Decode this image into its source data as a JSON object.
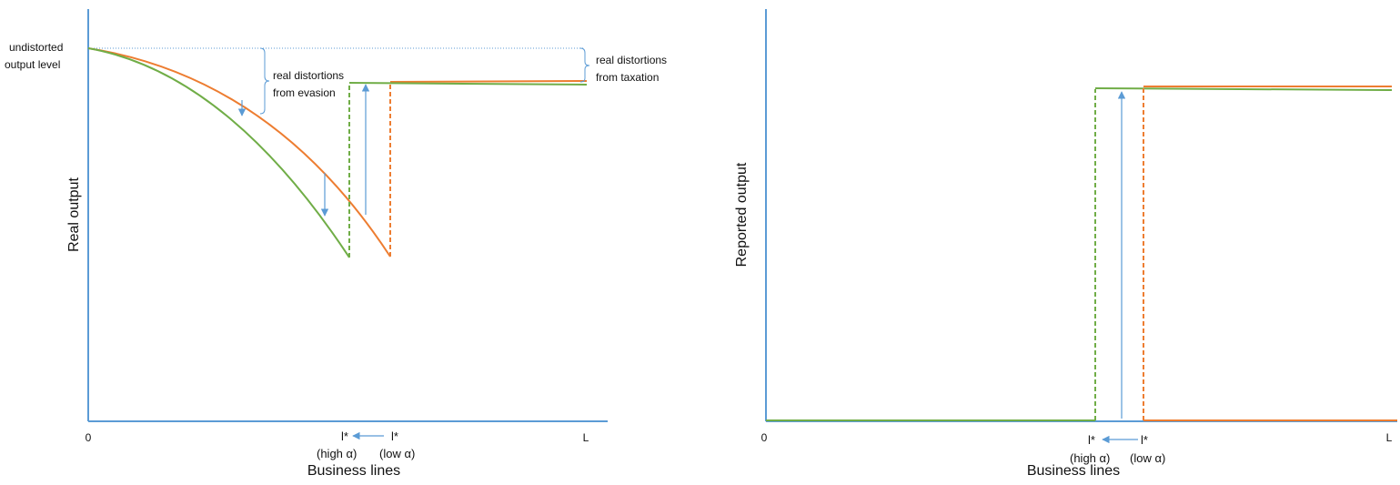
{
  "colors": {
    "axis": "#5b9bd5",
    "low_alpha_curve": "#ed7d31",
    "high_alpha_curve": "#70ad47",
    "arrow": "#5b9bd5",
    "brace": "#5b9bd5",
    "text": "#111111"
  },
  "left_panel": {
    "ylabel": "Real output",
    "xlabel": "Business lines",
    "x_origin_label": "0",
    "x_end_label": "L",
    "undistorted_label_line1": "undistorted",
    "undistorted_label_line2": "output level",
    "evasion_label_line1": "real distortions",
    "evasion_label_line2": "from evasion",
    "taxation_label_line1": "real distortions",
    "taxation_label_line2": "from taxation",
    "lstar_high": "l*",
    "lstar_low": "l*",
    "high_alpha": "(high α)",
    "low_alpha": "(low α)"
  },
  "right_panel": {
    "ylabel": "Reported output",
    "xlabel": "Business lines",
    "x_origin_label": "0",
    "x_end_label": "L",
    "lstar_high": "l*",
    "lstar_low": "l*",
    "high_alpha": "(high α)",
    "low_alpha": "(low α)"
  }
}
